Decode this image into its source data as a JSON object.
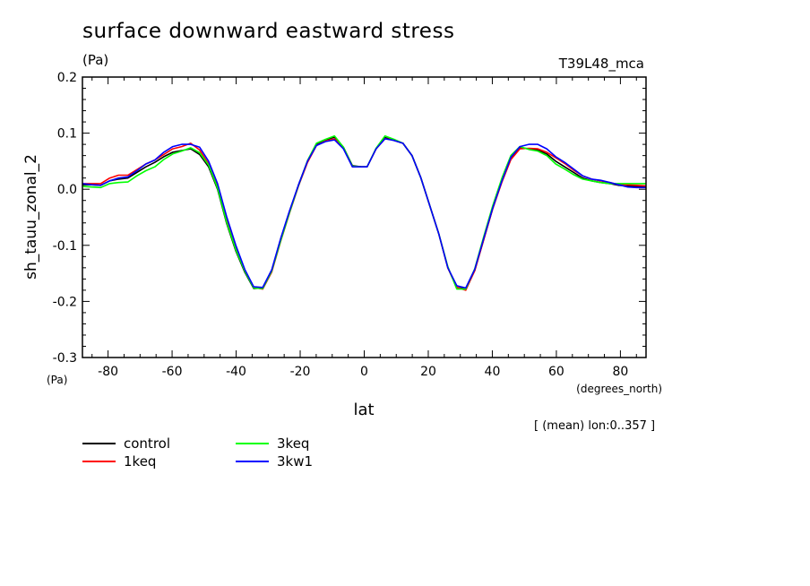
{
  "chart_data": {
    "type": "line",
    "title": "surface downward eastward stress",
    "units": "(Pa)",
    "run_label": "T39L48_mca",
    "ylabel": "sh_tauu_zonal_2",
    "y_units_label": "(Pa)",
    "xlabel": "lat",
    "x_units_label": "(degrees_north)",
    "note": "[ (mean) lon:0..357 ]",
    "xlim": [
      -88,
      88
    ],
    "ylim": [
      -0.3,
      0.2
    ],
    "x_ticks": [
      -80,
      -60,
      -40,
      -20,
      0,
      20,
      40,
      60,
      80
    ],
    "x_tick_labels": [
      "-80",
      "-60",
      "-40",
      "-20",
      "0",
      "20",
      "40",
      "60",
      "80"
    ],
    "y_ticks": [
      0.2,
      0.1,
      0.0,
      -0.1,
      -0.2,
      -0.3
    ],
    "y_tick_labels": [
      "0.2",
      "0.1",
      "0.0",
      "-0.1",
      "-0.2",
      "-0.3"
    ],
    "x": [
      -87.9,
      -85.1,
      -82.3,
      -79.5,
      -76.7,
      -73.8,
      -71.0,
      -68.2,
      -65.4,
      -62.6,
      -59.8,
      -57.0,
      -54.2,
      -51.4,
      -48.6,
      -45.8,
      -43.0,
      -40.1,
      -37.3,
      -34.5,
      -31.7,
      -28.9,
      -26.1,
      -23.3,
      -20.5,
      -17.7,
      -14.9,
      -12.1,
      -9.3,
      -6.5,
      -3.7,
      -0.9,
      0.9,
      3.7,
      6.5,
      9.3,
      12.1,
      14.9,
      17.7,
      20.5,
      23.3,
      26.1,
      28.9,
      31.7,
      34.5,
      37.3,
      40.1,
      43.0,
      45.8,
      48.6,
      51.4,
      54.2,
      57.0,
      59.8,
      62.6,
      65.4,
      68.2,
      71.0,
      73.8,
      76.7,
      79.5,
      82.3,
      85.1,
      87.9
    ],
    "series": [
      {
        "name": "control",
        "color": "#000000",
        "values": [
          0.008,
          0.008,
          0.007,
          0.015,
          0.018,
          0.02,
          0.03,
          0.04,
          0.048,
          0.058,
          0.066,
          0.069,
          0.072,
          0.062,
          0.04,
          0.0,
          -0.06,
          -0.11,
          -0.148,
          -0.177,
          -0.176,
          -0.145,
          -0.09,
          -0.04,
          0.008,
          0.05,
          0.08,
          0.088,
          0.093,
          0.075,
          0.042,
          0.04,
          0.04,
          0.072,
          0.092,
          0.087,
          0.082,
          0.06,
          0.02,
          -0.03,
          -0.08,
          -0.14,
          -0.175,
          -0.178,
          -0.145,
          -0.09,
          -0.035,
          0.015,
          0.055,
          0.074,
          0.072,
          0.07,
          0.063,
          0.05,
          0.04,
          0.03,
          0.02,
          0.015,
          0.012,
          0.01,
          0.007,
          0.006,
          0.005,
          0.005
        ]
      },
      {
        "name": "1keq",
        "color": "#ff0000",
        "values": [
          0.01,
          0.01,
          0.01,
          0.02,
          0.025,
          0.025,
          0.035,
          0.045,
          0.052,
          0.062,
          0.072,
          0.076,
          0.082,
          0.07,
          0.045,
          0.005,
          -0.055,
          -0.105,
          -0.145,
          -0.175,
          -0.178,
          -0.148,
          -0.093,
          -0.042,
          0.006,
          0.048,
          0.078,
          0.086,
          0.09,
          0.074,
          0.04,
          0.04,
          0.04,
          0.072,
          0.09,
          0.088,
          0.082,
          0.06,
          0.02,
          -0.03,
          -0.08,
          -0.14,
          -0.175,
          -0.18,
          -0.145,
          -0.09,
          -0.035,
          0.013,
          0.053,
          0.072,
          0.073,
          0.072,
          0.066,
          0.056,
          0.046,
          0.034,
          0.024,
          0.018,
          0.015,
          0.012,
          0.008,
          0.008,
          0.007,
          0.006
        ]
      },
      {
        "name": "3keq",
        "color": "#00ff00",
        "values": [
          0.005,
          0.004,
          0.003,
          0.01,
          0.012,
          0.013,
          0.024,
          0.033,
          0.04,
          0.053,
          0.063,
          0.068,
          0.074,
          0.065,
          0.043,
          0.002,
          -0.058,
          -0.108,
          -0.146,
          -0.176,
          -0.177,
          -0.146,
          -0.092,
          -0.041,
          0.007,
          0.051,
          0.082,
          0.089,
          0.095,
          0.075,
          0.041,
          0.04,
          0.04,
          0.073,
          0.095,
          0.089,
          0.082,
          0.06,
          0.02,
          -0.03,
          -0.08,
          -0.138,
          -0.178,
          -0.178,
          -0.142,
          -0.085,
          -0.03,
          0.02,
          0.06,
          0.076,
          0.071,
          0.068,
          0.06,
          0.045,
          0.036,
          0.026,
          0.018,
          0.015,
          0.012,
          0.01,
          0.01,
          0.01,
          0.01,
          0.01
        ]
      },
      {
        "name": "3kw1",
        "color": "#0000ff",
        "values": [
          0.01,
          0.008,
          0.007,
          0.015,
          0.02,
          0.022,
          0.033,
          0.045,
          0.052,
          0.066,
          0.076,
          0.08,
          0.08,
          0.075,
          0.05,
          0.01,
          -0.048,
          -0.1,
          -0.143,
          -0.174,
          -0.175,
          -0.144,
          -0.088,
          -0.038,
          0.008,
          0.05,
          0.078,
          0.085,
          0.088,
          0.072,
          0.04,
          0.04,
          0.04,
          0.072,
          0.09,
          0.087,
          0.082,
          0.06,
          0.02,
          -0.03,
          -0.08,
          -0.14,
          -0.172,
          -0.176,
          -0.143,
          -0.088,
          -0.034,
          0.015,
          0.057,
          0.076,
          0.08,
          0.08,
          0.072,
          0.058,
          0.048,
          0.036,
          0.024,
          0.018,
          0.016,
          0.012,
          0.008,
          0.004,
          0.003,
          0.003
        ]
      }
    ]
  }
}
